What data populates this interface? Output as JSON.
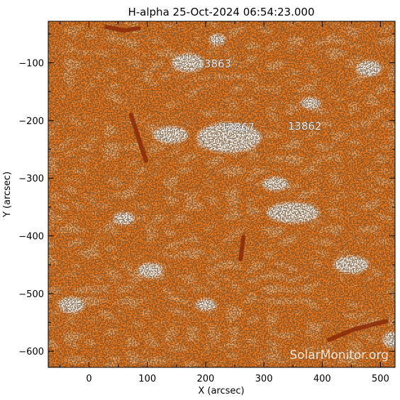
{
  "title": "H-alpha 25-Oct-2024 06:54:23.000",
  "x_axis": {
    "label": "X (arcsec)",
    "ticks": [
      0,
      100,
      200,
      300,
      400,
      500
    ],
    "tick_labels": [
      "0",
      "100",
      "200",
      "300",
      "400",
      "500"
    ],
    "range": [
      -70,
      525
    ]
  },
  "y_axis": {
    "label": "Y (arcsec)",
    "ticks": [
      -100,
      -200,
      -300,
      -400,
      -500,
      -600
    ],
    "tick_labels": [
      "−100",
      "−200",
      "−300",
      "−400",
      "−500",
      "−600"
    ],
    "range": [
      -628,
      -28
    ]
  },
  "regions": [
    {
      "number": "13863",
      "x": 215,
      "y": -108
    },
    {
      "number": "13867",
      "x": 255,
      "y": -218
    },
    {
      "number": "13862",
      "x": 370,
      "y": -216
    }
  ],
  "filaments": [
    {
      "points": [
        [
          72,
          -190
        ],
        [
          88,
          -240
        ],
        [
          98,
          -270
        ]
      ]
    },
    {
      "points": [
        [
          412,
          -580
        ],
        [
          455,
          -562
        ],
        [
          510,
          -548
        ]
      ]
    },
    {
      "points": [
        [
          30,
          -38
        ],
        [
          60,
          -44
        ],
        [
          85,
          -40
        ]
      ]
    },
    {
      "points": [
        [
          265,
          -402
        ],
        [
          260,
          -440
        ]
      ]
    }
  ],
  "plages": [
    {
      "x": 170,
      "y": -100,
      "rx": 28,
      "ry": 16
    },
    {
      "x": 240,
      "y": -230,
      "rx": 55,
      "ry": 26
    },
    {
      "x": 140,
      "y": -225,
      "rx": 30,
      "ry": 15
    },
    {
      "x": 350,
      "y": -360,
      "rx": 45,
      "ry": 18
    },
    {
      "x": 320,
      "y": -310,
      "rx": 22,
      "ry": 12
    },
    {
      "x": 450,
      "y": -450,
      "rx": 30,
      "ry": 15
    },
    {
      "x": 105,
      "y": -460,
      "rx": 22,
      "ry": 13
    },
    {
      "x": 60,
      "y": -370,
      "rx": 18,
      "ry": 11
    },
    {
      "x": 480,
      "y": -110,
      "rx": 22,
      "ry": 14
    },
    {
      "x": 380,
      "y": -170,
      "rx": 18,
      "ry": 10
    },
    {
      "x": 200,
      "y": -520,
      "rx": 18,
      "ry": 10
    },
    {
      "x": -30,
      "y": -520,
      "rx": 22,
      "ry": 14
    },
    {
      "x": 520,
      "y": -580,
      "rx": 16,
      "ry": 14
    },
    {
      "x": 220,
      "y": -60,
      "rx": 14,
      "ry": 10
    }
  ],
  "colors": {
    "background": "#f07a1e",
    "light": "#f8a45a",
    "dark": "#b8430a",
    "filament": "#8a2a08",
    "plage": "#ffffff",
    "grain": "#2a1206"
  },
  "watermark": "SolarMonitor.org"
}
